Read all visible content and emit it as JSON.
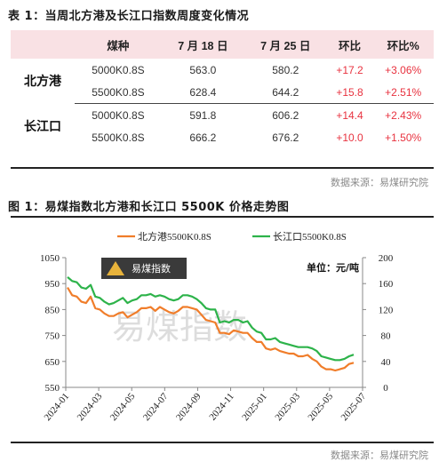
{
  "table_caption": "表 1：当周北方港及长江口指数周度变化情况",
  "table": {
    "headers": [
      "",
      "煤种",
      "7 月 18 日",
      "7 月 25 日",
      "环比",
      "环比%"
    ],
    "groups": [
      {
        "port": "北方港",
        "rows": [
          [
            "5000K0.8S",
            "563.0",
            "580.2",
            "+17.2",
            "+3.06%"
          ],
          [
            "5500K0.8S",
            "628.4",
            "644.2",
            "+15.8",
            "+2.51%"
          ]
        ]
      },
      {
        "port": "长江口",
        "rows": [
          [
            "5000K0.8S",
            "591.8",
            "606.2",
            "+14.4",
            "+2.43%"
          ],
          [
            "5500K0.8S",
            "666.2",
            "676.2",
            "+10.0",
            "+1.50%"
          ]
        ]
      }
    ]
  },
  "table_source": "数据来源：易煤研究院",
  "figure_caption": "图 1：易煤指数北方港和长江口 5500K 价格走势图",
  "figure_source": "数据来源：易煤研究院",
  "chart_data": {
    "type": "line",
    "unit_label": "单位：元/吨",
    "watermark": "易煤指数",
    "logo_text": "易煤指数",
    "x_ticks": [
      "2024-01",
      "2024-03",
      "2024-05",
      "2024-07",
      "2024-09",
      "2024-11",
      "2025-01",
      "2025-03",
      "2025-05",
      "2025-07"
    ],
    "left_axis": {
      "min": 550,
      "max": 1050,
      "ticks": [
        550,
        650,
        750,
        850,
        950,
        1050
      ]
    },
    "right_axis": {
      "min": 0,
      "max": 200,
      "ticks": [
        0,
        40,
        80,
        120,
        160,
        200
      ]
    },
    "series": [
      {
        "name": "北方港5500K0.8S",
        "color": "#f07d2a",
        "values": [
          935,
          905,
          900,
          880,
          875,
          900,
          855,
          850,
          835,
          825,
          825,
          835,
          840,
          820,
          830,
          840,
          855,
          855,
          860,
          845,
          860,
          850,
          840,
          835,
          845,
          860,
          860,
          855,
          850,
          830,
          810,
          805,
          800,
          760,
          760,
          755,
          770,
          765,
          760,
          760,
          740,
          725,
          725,
          700,
          695,
          700,
          690,
          685,
          680,
          680,
          670,
          670,
          675,
          660,
          650,
          630,
          620,
          620,
          615,
          620,
          625,
          640,
          645
        ]
      },
      {
        "name": "长江口5500K0.8S",
        "color": "#2db34a",
        "values": [
          975,
          960,
          955,
          935,
          930,
          945,
          900,
          895,
          880,
          870,
          875,
          885,
          895,
          875,
          885,
          890,
          905,
          905,
          910,
          900,
          905,
          900,
          890,
          885,
          890,
          905,
          905,
          900,
          890,
          875,
          855,
          850,
          850,
          800,
          805,
          800,
          810,
          810,
          800,
          805,
          780,
          765,
          760,
          735,
          735,
          740,
          725,
          720,
          715,
          710,
          705,
          705,
          705,
          700,
          690,
          670,
          665,
          660,
          655,
          655,
          660,
          670,
          676
        ]
      }
    ]
  }
}
